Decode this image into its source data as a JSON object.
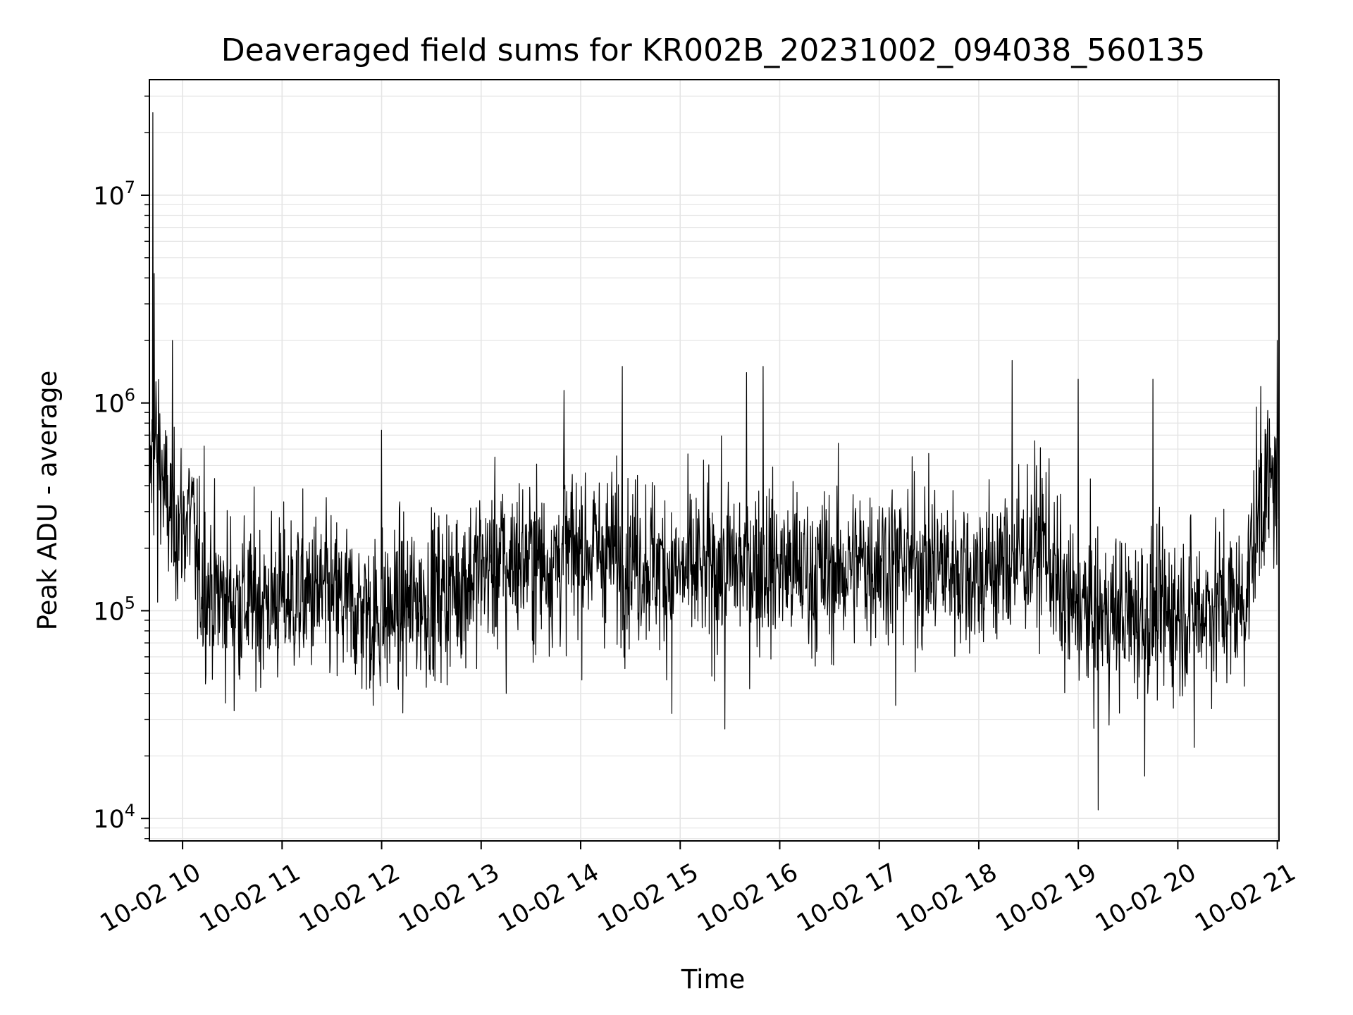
{
  "chart_data": {
    "type": "line",
    "title": "Deaveraged field sums for KR002B_20231002_094038_560135",
    "xlabel": "Time",
    "ylabel": "Peak ADU - average",
    "yscale": "log",
    "grid": true,
    "line_color": "#000000",
    "grid_color": "#e5e5e5",
    "xlim": [
      "2023-10-02 09:40",
      "2023-10-02 21:01"
    ],
    "ylim": [
      7800,
      36000000
    ],
    "x_ticks": [
      "10-02 10",
      "10-02 11",
      "10-02 12",
      "10-02 13",
      "10-02 14",
      "10-02 15",
      "10-02 16",
      "10-02 17",
      "10-02 18",
      "10-02 19",
      "10-02 20",
      "10-02 21"
    ],
    "x_tick_hours": [
      10,
      11,
      12,
      13,
      14,
      15,
      16,
      17,
      18,
      19,
      20,
      21
    ],
    "y_ticks": [
      {
        "value": 10000,
        "base": "10",
        "exp": "4"
      },
      {
        "value": 100000,
        "base": "10",
        "exp": "5"
      },
      {
        "value": 1000000,
        "base": "10",
        "exp": "6"
      },
      {
        "value": 10000000,
        "base": "10",
        "exp": "7"
      }
    ],
    "series": [
      {
        "x_start": "2023-10-02 09:40",
        "x_end": "2023-10-02 21:01",
        "baseline": [
          [
            "09:40",
            450000
          ],
          [
            "09:45",
            700000
          ],
          [
            "09:50",
            320000
          ],
          [
            "09:55",
            280000
          ],
          [
            "10:00",
            260000
          ],
          [
            "10:05",
            300000
          ],
          [
            "10:10",
            140000
          ],
          [
            "10:20",
            120000
          ],
          [
            "10:40",
            110000
          ],
          [
            "11:00",
            115000
          ],
          [
            "11:20",
            120000
          ],
          [
            "11:40",
            105000
          ],
          [
            "12:00",
            95000
          ],
          [
            "12:20",
            110000
          ],
          [
            "12:40",
            125000
          ],
          [
            "13:00",
            160000
          ],
          [
            "13:20",
            180000
          ],
          [
            "13:40",
            170000
          ],
          [
            "14:00",
            200000
          ],
          [
            "14:20",
            190000
          ],
          [
            "14:40",
            175000
          ],
          [
            "15:00",
            150000
          ],
          [
            "15:20",
            160000
          ],
          [
            "15:40",
            170000
          ],
          [
            "16:00",
            165000
          ],
          [
            "16:20",
            150000
          ],
          [
            "16:40",
            160000
          ],
          [
            "17:00",
            180000
          ],
          [
            "17:20",
            170000
          ],
          [
            "17:40",
            165000
          ],
          [
            "18:00",
            150000
          ],
          [
            "18:20",
            170000
          ],
          [
            "18:40",
            220000
          ],
          [
            "18:50",
            110000
          ],
          [
            "19:00",
            100000
          ],
          [
            "19:20",
            95000
          ],
          [
            "19:40",
            95000
          ],
          [
            "20:00",
            100000
          ],
          [
            "20:20",
            105000
          ],
          [
            "20:40",
            110000
          ],
          [
            "20:50",
            350000
          ],
          [
            "21:00",
            420000
          ]
        ],
        "spikes": [
          [
            "09:42",
            25000000
          ],
          [
            "09:43",
            4200000
          ],
          [
            "09:45",
            110000
          ],
          [
            "09:54",
            2000000
          ],
          [
            "10:13",
            620000
          ],
          [
            "10:31",
            33000
          ],
          [
            "11:55",
            35000
          ],
          [
            "12:00",
            740000
          ],
          [
            "13:15",
            40000
          ],
          [
            "13:50",
            1150000
          ],
          [
            "14:25",
            1500000
          ],
          [
            "14:55",
            32000
          ],
          [
            "15:27",
            27000
          ],
          [
            "15:40",
            1400000
          ],
          [
            "15:50",
            1500000
          ],
          [
            "17:10",
            35000
          ],
          [
            "18:20",
            1600000
          ],
          [
            "19:00",
            1300000
          ],
          [
            "19:12",
            11000
          ],
          [
            "19:40",
            16000
          ],
          [
            "19:45",
            1300000
          ],
          [
            "20:10",
            22000
          ],
          [
            "20:50",
            1200000
          ],
          [
            "21:00",
            2000000
          ]
        ]
      }
    ]
  }
}
